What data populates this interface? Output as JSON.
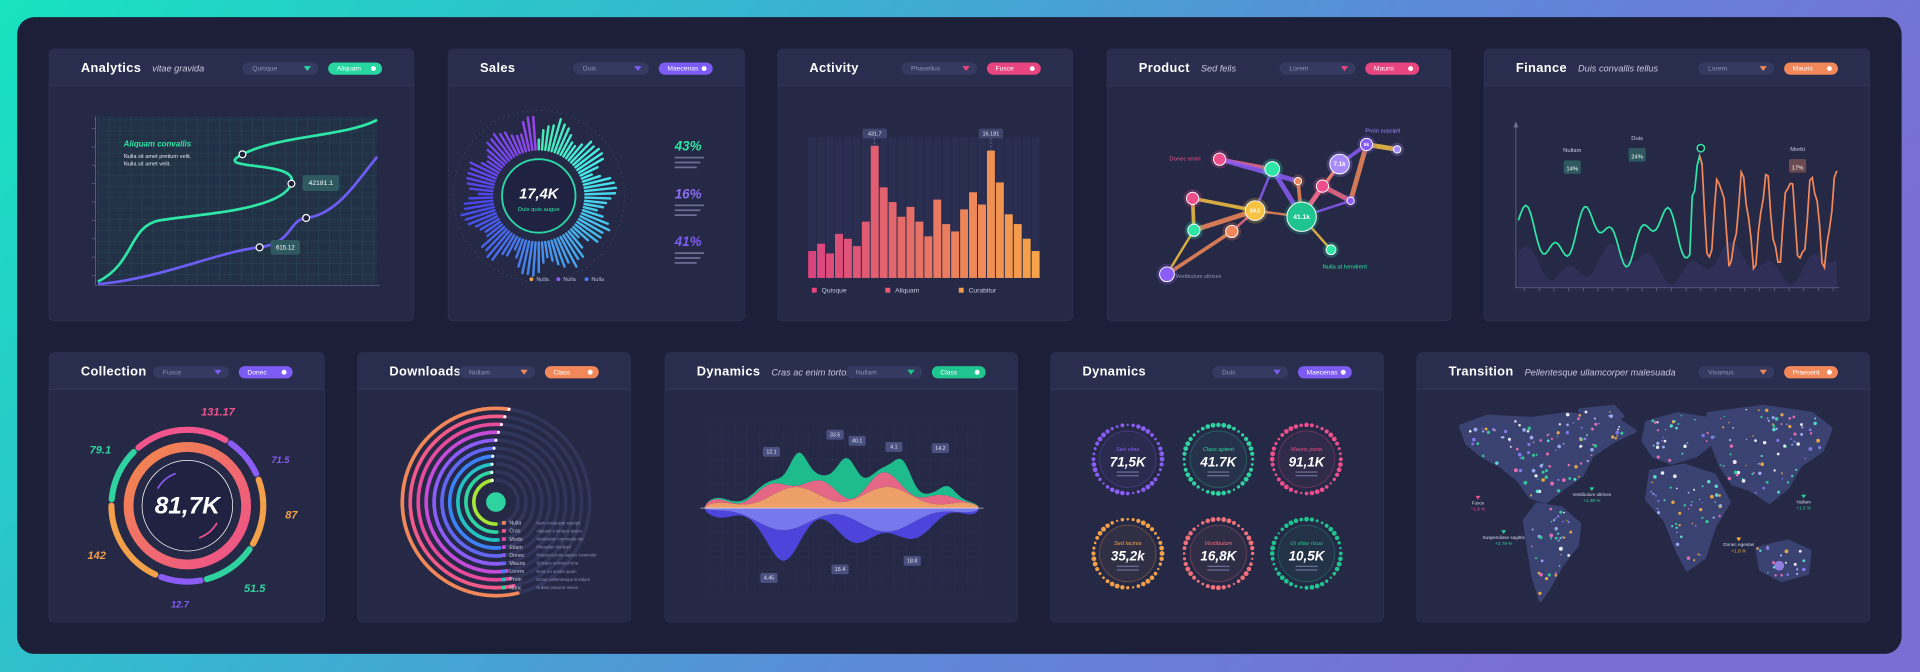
{
  "panels": [
    {
      "title": "Analytics",
      "subtitle": "vitae gravida",
      "dropdown": "Quisque",
      "toggle": "Aliquam",
      "accent": "#27d6a0",
      "note_title": "Aliquam convallis",
      "note_lines": [
        "Nulla sit amet pretium velit.",
        "Nulla sit amet velit."
      ],
      "labels": [
        "42181.1",
        "615.12"
      ]
    },
    {
      "title": "Sales",
      "dropdown": "Duis",
      "toggle": "Maecenas",
      "accent": "#7d5cf5",
      "center": "17,4K",
      "caption": "Duis quis augue",
      "percents": [
        "43%",
        "16%",
        "41%"
      ],
      "legend": [
        "Nulla",
        "Nulla",
        "Nulla"
      ]
    },
    {
      "title": "Activity",
      "dropdown": "Phasellus",
      "toggle": "Fusce",
      "accent": "#e8457f",
      "values": [
        22,
        28,
        20,
        36,
        32,
        26,
        46,
        108,
        74,
        62,
        50,
        58,
        46,
        34,
        64,
        44,
        38,
        56,
        70,
        60,
        104,
        78,
        52,
        44,
        32,
        22
      ],
      "labels": [
        "431.7",
        "16.181"
      ],
      "legend": [
        "Quisque",
        "Aliquam",
        "Curabitur"
      ]
    },
    {
      "title": "Product",
      "subtitle": "Sed felis",
      "dropdown": "Lorem",
      "toggle": "Mauris",
      "accent": "#e8457f",
      "labels": [
        "Proin suscipit",
        "Donec enim",
        "Nulla at hendrerit",
        "Vestibulum ultrices"
      ],
      "nodes": [
        "41.1k",
        "34.1",
        "7.1k",
        "5k"
      ]
    },
    {
      "title": "Finance",
      "subtitle": "Duis convallis tellus",
      "dropdown": "Lorem",
      "toggle": "Mauris",
      "accent": "#f2885a",
      "markers": [
        {
          "name": "Nullam",
          "value": "14%"
        },
        {
          "name": "Duis",
          "value": "24%"
        },
        {
          "name": "Morbi",
          "value": "17%"
        }
      ]
    },
    {
      "title": "Collection",
      "dropdown": "Fusce",
      "toggle": "Donec",
      "accent": "#7d5cf5",
      "center": "81,7K",
      "values": [
        "131.17",
        "79.1",
        "71.5",
        "87",
        "142",
        "12.7",
        "51.5"
      ]
    },
    {
      "title": "Downloads",
      "dropdown": "Nullam",
      "toggle": "Class",
      "accent": "#f2885a",
      "legend": [
        "Nulla",
        "Cras",
        "Morbi",
        "Etiam",
        "Donec",
        "Mauris",
        "Lorem",
        "Proin",
        "Nunc"
      ],
      "notes": [
        "Nam consequat suscipit",
        "Aliquam a tempus ipsum",
        "Vestibulum commodo nisi",
        "Phasellus tincidunt",
        "Praesent porta sapien commodo",
        "Quisque euismod urna",
        "Nunc eu ornare quam",
        "Donec pellentesque tincidunt",
        "Nullam posuere metus"
      ]
    },
    {
      "title": "Dynamics",
      "subtitle": "Cras ac enim tortor",
      "dropdown": "Nullam",
      "toggle": "Class",
      "accent": "#1fc48f",
      "labels": [
        "12.1",
        "33.5",
        "40.1",
        "4.1",
        "14.2",
        "4.45",
        "15.4",
        "18.8"
      ]
    },
    {
      "title": "Dynamics",
      "dropdown": "Duis",
      "toggle": "Maecenas",
      "accent": "#7d5cf5",
      "rings": [
        {
          "name": "Sed vitae",
          "value": "71,5K"
        },
        {
          "name": "Class aptent",
          "value": "41.7K"
        },
        {
          "name": "Mauris porta",
          "value": "91,1K"
        },
        {
          "name": "Sed lacinia",
          "value": "35,2k"
        },
        {
          "name": "Vestibulum",
          "value": "16,8K"
        },
        {
          "name": "Ut vitae risus",
          "value": "10,5K"
        }
      ]
    },
    {
      "title": "Transition",
      "subtitle": "Pellentesque ullamcorper malesuada",
      "dropdown": "Vivamus",
      "toggle": "Praesent",
      "accent": "#f2885a",
      "labels": [
        {
          "name": "Vestibulum ultrices",
          "value": "+1.38 %"
        },
        {
          "name": "Suspendisse sagittis",
          "value": "+2.79 %"
        },
        {
          "name": "Donec egestas",
          "value": "+1.8 %"
        },
        {
          "name": "Fusce",
          "value": "+1.8 %"
        },
        {
          "name": "Nullam",
          "value": "+1.5 %"
        }
      ]
    }
  ]
}
